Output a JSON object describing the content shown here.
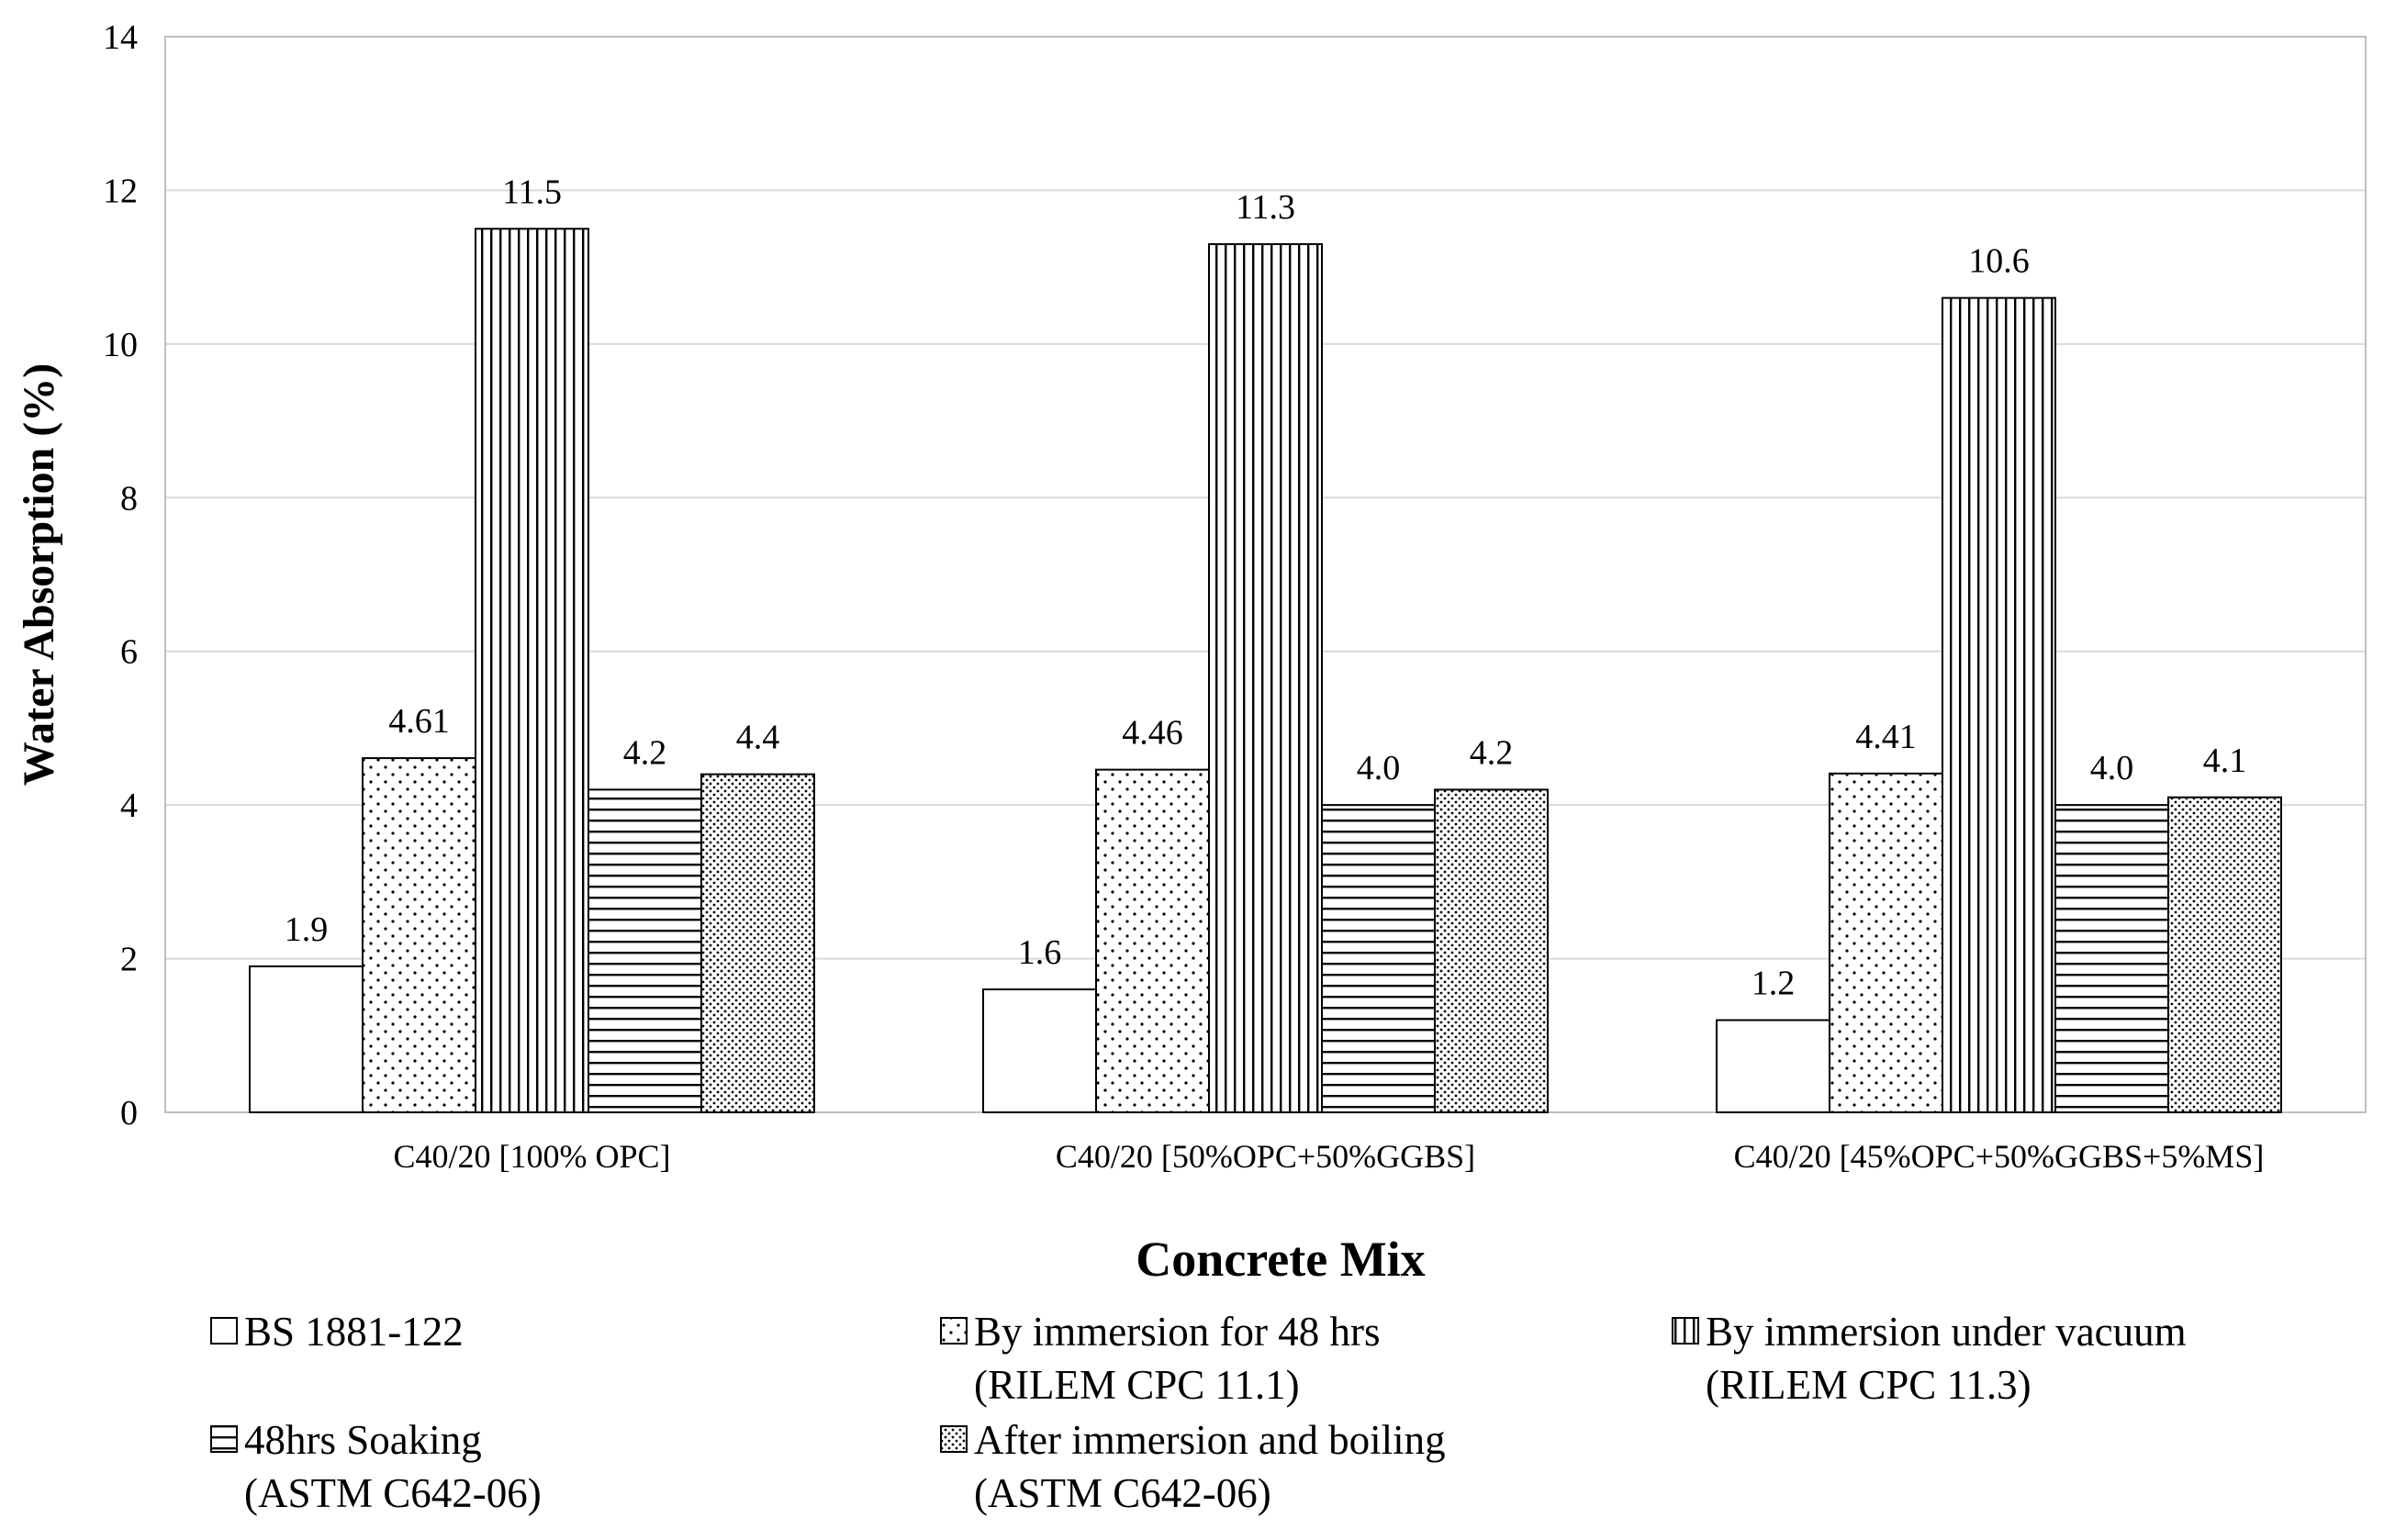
{
  "chart_data": {
    "type": "bar",
    "title": "",
    "xlabel": "Concrete Mix",
    "ylabel": "Water Absorption (%)",
    "ylim": [
      0,
      14
    ],
    "yticks": [
      0,
      2,
      4,
      6,
      8,
      10,
      12,
      14
    ],
    "grid": true,
    "legend_position": "bottom",
    "categories": [
      "C40/20 [100% OPC]",
      "C40/20 [50%OPC+50%GGBS]",
      "C40/20 [45%OPC+50%GGBS+5%MS]"
    ],
    "series": [
      {
        "name": "BS 1881-122",
        "name_line2": "",
        "pattern": "blank",
        "values": [
          1.9,
          1.6,
          1.2
        ],
        "labels": [
          "1.9",
          "1.6",
          "1.2"
        ]
      },
      {
        "name": "By immersion for 48 hrs",
        "name_line2": "(RILEM CPC 11.1)",
        "pattern": "sparse-dots",
        "values": [
          4.61,
          4.46,
          4.41
        ],
        "labels": [
          "4.61",
          "4.46",
          "4.41"
        ]
      },
      {
        "name": "By immersion under vacuum",
        "name_line2": "(RILEM CPC 11.3)",
        "pattern": "vertical-lines",
        "values": [
          11.5,
          11.3,
          10.6
        ],
        "labels": [
          "11.5",
          "11.3",
          "10.6"
        ]
      },
      {
        "name": "48hrs Soaking",
        "name_line2": "(ASTM C642-06)",
        "pattern": "horizontal-lines",
        "values": [
          4.2,
          4.0,
          4.0
        ],
        "labels": [
          "4.2",
          "4.0",
          "4.0"
        ]
      },
      {
        "name": "After immersion and boiling",
        "name_line2": "(ASTM C642-06)",
        "pattern": "dense-dots",
        "values": [
          4.4,
          4.2,
          4.1
        ],
        "labels": [
          "4.4",
          "4.2",
          "4.1"
        ]
      }
    ]
  }
}
